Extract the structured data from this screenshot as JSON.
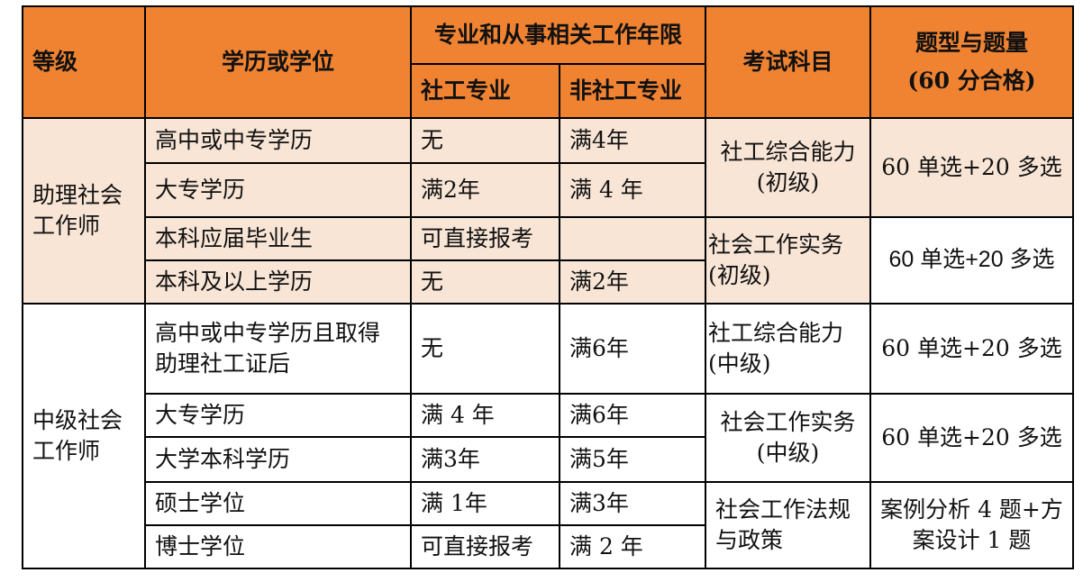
{
  "header": {
    "level": "等级",
    "education": "学历或学位",
    "years": "专业和从事相关工作年限",
    "sw_major": "社工专业",
    "non_sw_major": "非社工专业",
    "subject": "考试科目",
    "question_type": "题型与题量",
    "pass": "(60 分合格)"
  },
  "colors": {
    "header_bg": "#EF8332",
    "assistant_bg": "#F8E5D6"
  },
  "groups": [
    {
      "level": "助理社会工作师",
      "rows": [
        {
          "education": "高中或中专学历",
          "sw": "无",
          "non_sw": "满4年"
        },
        {
          "education": "大专学历",
          "sw": "满2年",
          "non_sw": "满 4 年"
        },
        {
          "education": "本科应届毕业生",
          "sw": "可直接报考",
          "non_sw": ""
        },
        {
          "education": "本科及以上学历",
          "sw": "无",
          "non_sw": "满2年"
        }
      ],
      "subjects": [
        {
          "name": "社工综合能力(初级)",
          "type": "60 单选+20 多选"
        },
        {
          "name": "社会工作实务(初级)",
          "type": "60 单选+20 多选"
        }
      ]
    },
    {
      "level": "中级社会工作师",
      "rows": [
        {
          "education": "高中或中专学历且取得助理社工证后",
          "sw": "无",
          "non_sw": "满6年"
        },
        {
          "education": "大专学历",
          "sw": "满 4 年",
          "non_sw": "满6年"
        },
        {
          "education": "大学本科学历",
          "sw": "满3年",
          "non_sw": "满5年"
        },
        {
          "education": "硕士学位",
          "sw": "满 1年",
          "non_sw": "满3年"
        },
        {
          "education": "博士学位",
          "sw": "可直接报考",
          "non_sw": "满 2 年"
        }
      ],
      "subjects": [
        {
          "name": "社工综合能力(中级)",
          "type": "60 单选+20 多选"
        },
        {
          "name": "社会工作实务(中级)",
          "type": "60 单选+20 多选"
        },
        {
          "name": "社会工作法规与政策",
          "type": "案例分析 4 题+方案设计 1 题"
        }
      ]
    }
  ]
}
